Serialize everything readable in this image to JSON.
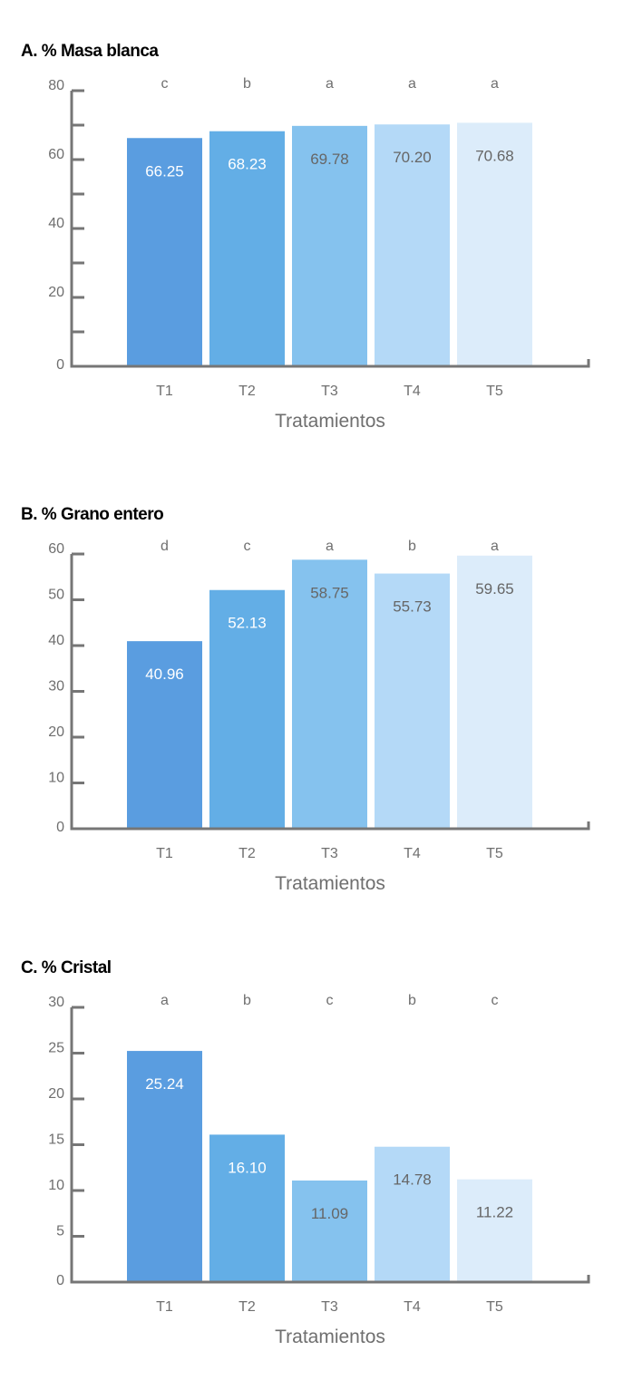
{
  "chart_data": [
    {
      "type": "bar",
      "title": "A. % Masa blanca",
      "xlabel": "Tratamientos",
      "ylabel": "",
      "categories": [
        "T1",
        "T2",
        "T3",
        "T4",
        "T5"
      ],
      "values": [
        66.25,
        68.23,
        69.78,
        70.2,
        70.68
      ],
      "value_labels": [
        "66.25",
        "68.23",
        "69.78",
        "70.20",
        "70.68"
      ],
      "significance_letters": [
        "c",
        "b",
        "a",
        "a",
        "a"
      ],
      "ylim": [
        0,
        80
      ],
      "yticks": [
        0,
        20,
        40,
        60,
        80
      ],
      "minor_step": 10,
      "grid": false
    },
    {
      "type": "bar",
      "title": "B. % Grano entero",
      "xlabel": "Tratamientos",
      "ylabel": "",
      "categories": [
        "T1",
        "T2",
        "T3",
        "T4",
        "T5"
      ],
      "values": [
        40.96,
        52.13,
        58.75,
        55.73,
        59.65
      ],
      "value_labels": [
        "40.96",
        "52.13",
        "58.75",
        "55.73",
        "59.65"
      ],
      "significance_letters": [
        "d",
        "c",
        "a",
        "b",
        "a"
      ],
      "ylim": [
        0,
        60
      ],
      "yticks": [
        0,
        10,
        20,
        30,
        40,
        50,
        60
      ],
      "minor_step": 10,
      "grid": false
    },
    {
      "type": "bar",
      "title": "C. % Cristal",
      "xlabel": "Tratamientos",
      "ylabel": "",
      "categories": [
        "T1",
        "T2",
        "T3",
        "T4",
        "T5"
      ],
      "values": [
        25.24,
        16.1,
        11.09,
        14.78,
        11.22
      ],
      "value_labels": [
        "25.24",
        "16.10",
        "11.09",
        "14.78",
        "11.22"
      ],
      "significance_letters": [
        "a",
        "b",
        "c",
        "b",
        "c"
      ],
      "ylim": [
        0,
        30
      ],
      "yticks": [
        0,
        5,
        10,
        15,
        20,
        25,
        30
      ],
      "minor_step": 5,
      "grid": false
    }
  ],
  "colors": {
    "bars": [
      "#5a9de0",
      "#63aee6",
      "#85c2ee",
      "#b4d9f7",
      "#dcecfa"
    ],
    "value_text": [
      "#ffffff",
      "#ffffff",
      "#666666",
      "#666666",
      "#666666"
    ],
    "axis": "#767676"
  }
}
